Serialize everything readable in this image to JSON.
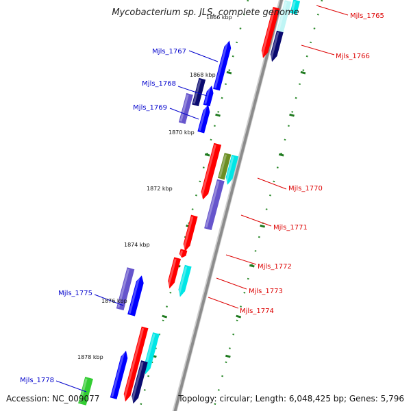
{
  "title": "Mycobacterium sp. JLS, complete genome",
  "accession": "Accession: NC_009077",
  "topology": "Topology: circular; Length: 6,048,425 bp; Genes: 5,796",
  "kbp_labels": [
    {
      "text": "1866 kbp"
    },
    {
      "text": "1868 kbp"
    },
    {
      "text": "1870 kbp"
    },
    {
      "text": "1872 kbp"
    },
    {
      "text": "1874 kbp"
    },
    {
      "text": "1876 kbp"
    },
    {
      "text": "1878 kbp"
    }
  ],
  "gene_labels": [
    {
      "text": "Mjls_1765",
      "color": "#dd0000"
    },
    {
      "text": "Mjls_1766",
      "color": "#dd0000"
    },
    {
      "text": "Mjls_1767",
      "color": "#0000cc"
    },
    {
      "text": "Mjls_1768",
      "color": "#0000cc"
    },
    {
      "text": "Mjls_1769",
      "color": "#0000cc"
    },
    {
      "text": "Mjls_1770",
      "color": "#dd0000"
    },
    {
      "text": "Mjls_1771",
      "color": "#dd0000"
    },
    {
      "text": "Mjls_1772",
      "color": "#dd0000"
    },
    {
      "text": "Mjls_1773",
      "color": "#dd0000"
    },
    {
      "text": "Mjls_1774",
      "color": "#dd0000"
    },
    {
      "text": "Mjls_1775",
      "color": "#0000cc"
    },
    {
      "text": "Mjls_1778",
      "color": "#0000cc"
    }
  ],
  "colors": {
    "backbone": "#8c8c8c",
    "forward_label": "#0000cc",
    "reverse_label": "#dd0000",
    "tick_dots": "#2e8b2e",
    "gene_red": "#ff0000",
    "gene_blue": "#0000ff",
    "gene_navy": "#0a0a70",
    "gene_slate": "#6655cc",
    "gene_cyan": "#00e6e6",
    "gene_olive": "#6b8e23",
    "gene_green": "#33cc33"
  }
}
